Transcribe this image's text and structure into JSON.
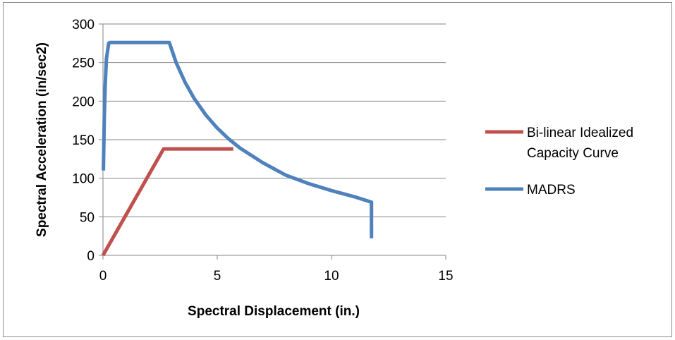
{
  "chart_data": {
    "type": "line",
    "title": "",
    "xlabel": "Spectral Displacement (in.)",
    "ylabel": "Spectral Acceleration (in/sec2)",
    "xlim": [
      0,
      15
    ],
    "ylim": [
      0,
      300
    ],
    "xticks": [
      0,
      5,
      10,
      15
    ],
    "yticks": [
      0,
      50,
      100,
      150,
      200,
      250,
      300
    ],
    "grid": "horizontal",
    "legend_position": "right",
    "series": [
      {
        "name": "Bi-linear Idealized Capacity Curve",
        "color": "#c0504d",
        "x": [
          0,
          2.65,
          5.7
        ],
        "y": [
          0,
          138,
          138
        ]
      },
      {
        "name": "MADRS",
        "color": "#4f81bd",
        "x": [
          0.02,
          0.06,
          0.1,
          0.15,
          0.25,
          0.3,
          2.9,
          3.2,
          3.6,
          4.0,
          4.5,
          5.0,
          5.5,
          6.0,
          7.0,
          8.0,
          9.0,
          10.0,
          11.0,
          11.75,
          11.75
        ],
        "y": [
          110,
          180,
          222,
          255,
          275,
          276,
          276,
          250,
          224,
          203,
          182,
          165,
          151,
          139,
          120,
          104,
          93,
          84,
          76,
          69,
          22
        ]
      }
    ]
  }
}
